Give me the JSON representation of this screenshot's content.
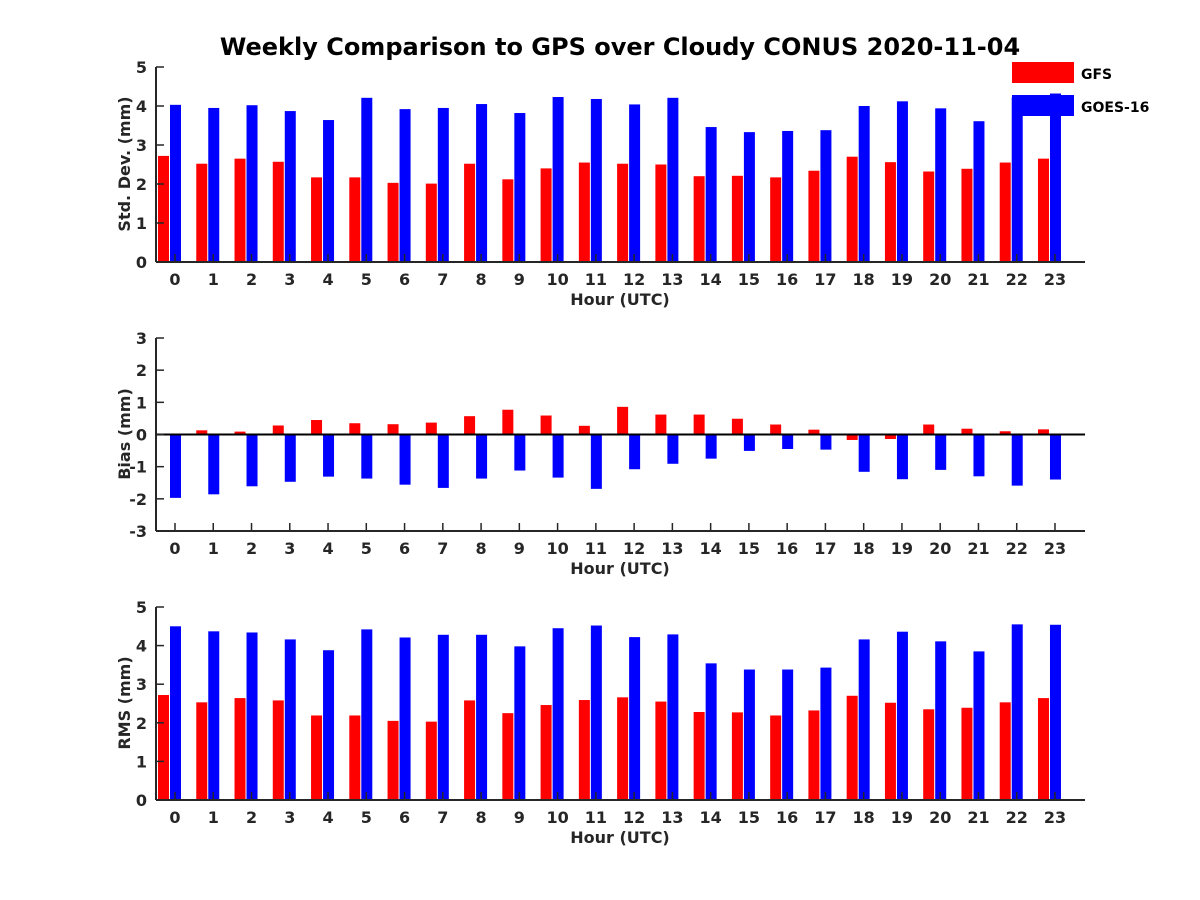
{
  "title": "Weekly Comparison to GPS over Cloudy CONUS 2020-11-04",
  "legend": [
    {
      "name": "GFS",
      "color": "#ff0000"
    },
    {
      "name": "GOES-16",
      "color": "#0000ff"
    }
  ],
  "chart_data": [
    {
      "type": "bar",
      "ylabel": "Std. Dev. (mm)",
      "xlabel": "Hour (UTC)",
      "ylim": [
        0,
        5
      ],
      "yticks": [
        "0",
        "1",
        "2",
        "3",
        "4",
        "5"
      ],
      "categories": [
        "0",
        "1",
        "2",
        "3",
        "4",
        "5",
        "6",
        "7",
        "8",
        "9",
        "10",
        "11",
        "12",
        "13",
        "14",
        "15",
        "16",
        "17",
        "18",
        "19",
        "20",
        "21",
        "22",
        "23"
      ],
      "series": [
        {
          "name": "GFS",
          "color": "#ff0000",
          "values": [
            2.72,
            2.52,
            2.65,
            2.57,
            2.17,
            2.17,
            2.03,
            2.01,
            2.52,
            2.12,
            2.4,
            2.55,
            2.52,
            2.5,
            2.2,
            2.21,
            2.17,
            2.34,
            2.7,
            2.56,
            2.32,
            2.39,
            2.55,
            2.65
          ]
        },
        {
          "name": "GOES-16",
          "color": "#0000ff",
          "values": [
            4.03,
            3.95,
            4.02,
            3.87,
            3.64,
            4.21,
            3.92,
            3.95,
            4.05,
            3.82,
            4.23,
            4.18,
            4.04,
            4.21,
            3.46,
            3.33,
            3.36,
            3.38,
            4.0,
            4.12,
            3.94,
            3.61,
            4.22,
            4.32
          ]
        }
      ]
    },
    {
      "type": "bar",
      "ylabel": "Bias (mm)",
      "xlabel": "Hour (UTC)",
      "ylim": [
        -3,
        3
      ],
      "yticks": [
        "-3",
        "-2",
        "-1",
        "0",
        "1",
        "2",
        "3"
      ],
      "categories": [
        "0",
        "1",
        "2",
        "3",
        "4",
        "5",
        "6",
        "7",
        "8",
        "9",
        "10",
        "11",
        "12",
        "13",
        "14",
        "15",
        "16",
        "17",
        "18",
        "19",
        "20",
        "21",
        "22",
        "23"
      ],
      "series": [
        {
          "name": "GFS",
          "color": "#ff0000",
          "values": [
            0.0,
            0.13,
            0.09,
            0.28,
            0.45,
            0.35,
            0.32,
            0.37,
            0.57,
            0.77,
            0.59,
            0.27,
            0.86,
            0.62,
            0.62,
            0.49,
            0.31,
            0.15,
            -0.17,
            -0.14,
            0.31,
            0.18,
            0.1,
            0.16
          ]
        },
        {
          "name": "GOES-16",
          "color": "#0000ff",
          "values": [
            -1.97,
            -1.86,
            -1.61,
            -1.47,
            -1.31,
            -1.37,
            -1.56,
            -1.66,
            -1.37,
            -1.12,
            -1.34,
            -1.69,
            -1.08,
            -0.91,
            -0.75,
            -0.51,
            -0.45,
            -0.47,
            -1.16,
            -1.39,
            -1.1,
            -1.3,
            -1.59,
            -1.4
          ]
        }
      ]
    },
    {
      "type": "bar",
      "ylabel": "RMS (mm)",
      "xlabel": "Hour (UTC)",
      "ylim": [
        0,
        5
      ],
      "yticks": [
        "0",
        "1",
        "2",
        "3",
        "4",
        "5"
      ],
      "categories": [
        "0",
        "1",
        "2",
        "3",
        "4",
        "5",
        "6",
        "7",
        "8",
        "9",
        "10",
        "11",
        "12",
        "13",
        "14",
        "15",
        "16",
        "17",
        "18",
        "19",
        "20",
        "21",
        "22",
        "23"
      ],
      "series": [
        {
          "name": "GFS",
          "color": "#ff0000",
          "values": [
            2.72,
            2.53,
            2.64,
            2.58,
            2.19,
            2.19,
            2.05,
            2.03,
            2.58,
            2.25,
            2.46,
            2.59,
            2.66,
            2.55,
            2.28,
            2.27,
            2.19,
            2.32,
            2.7,
            2.52,
            2.35,
            2.39,
            2.53,
            2.64
          ]
        },
        {
          "name": "GOES-16",
          "color": "#0000ff",
          "values": [
            4.5,
            4.37,
            4.34,
            4.16,
            3.88,
            4.42,
            4.21,
            4.28,
            4.28,
            3.98,
            4.45,
            4.52,
            4.22,
            4.29,
            3.54,
            3.38,
            3.38,
            3.43,
            4.16,
            4.36,
            4.11,
            3.85,
            4.55,
            4.54
          ]
        }
      ]
    }
  ]
}
